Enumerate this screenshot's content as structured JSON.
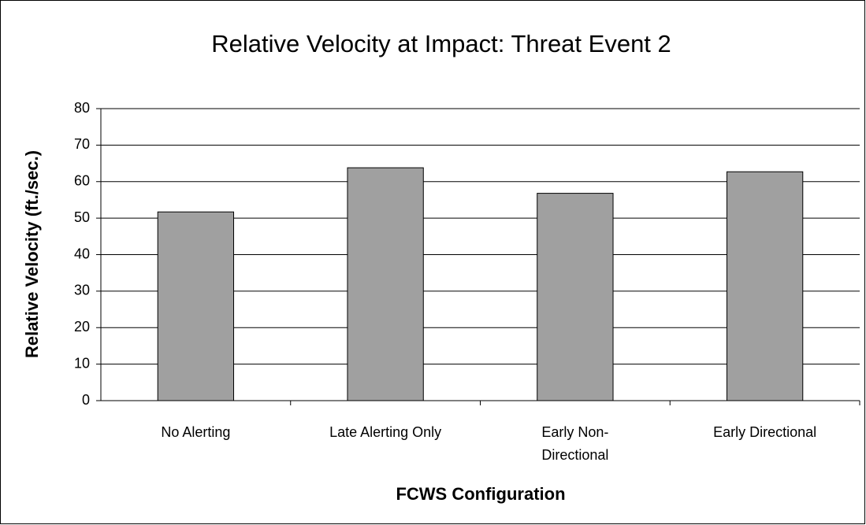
{
  "chart_data": {
    "type": "bar",
    "title": "Relative Velocity at Impact:  Threat Event 2",
    "x_label": "FCWS Configuration",
    "y_label": "Relative Velocity (ft./sec.)",
    "categories": [
      "No Alerting",
      "Late Alerting Only",
      "Early Non-\nDirectional",
      "Early Directional"
    ],
    "values": [
      51.7,
      63.8,
      56.8,
      62.7
    ],
    "color": "#a0a0a0",
    "ylim": [
      0,
      80
    ],
    "yticks": [
      0,
      10,
      20,
      30,
      40,
      50,
      60,
      70,
      80
    ],
    "grid": true
  }
}
